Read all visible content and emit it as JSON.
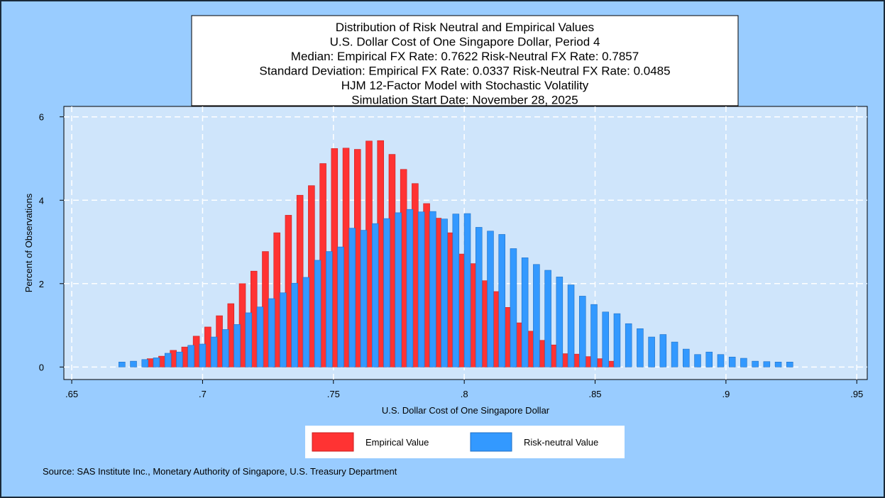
{
  "chart_data": {
    "type": "histogram",
    "title": [
      "Distribution of Risk Neutral and Empirical Values",
      "U.S. Dollar Cost of One Singapore Dollar, Period 4",
      "Median: Empirical FX Rate:  0.7622   Risk-Neutral FX Rate:  0.7857",
      "Standard Deviation: Empirical FX Rate:  0.0337   Risk-Neutral FX Rate:  0.0485",
      "HJM 12-Factor Model with Stochastic Volatility",
      "Simulation Start Date: November 28, 2025"
    ],
    "x_label": "U.S. Dollar Cost of One Singapore Dollar",
    "y_label": "Percent of Observations",
    "source": "Source: SAS Institute Inc., Monetary Authority of Singapore, U.S. Treasury Department",
    "x": [
      0.668,
      0.6724,
      0.6768,
      0.6812,
      0.6856,
      0.69,
      0.6944,
      0.6988,
      0.7032,
      0.7076,
      0.712,
      0.7164,
      0.7208,
      0.7252,
      0.7296,
      0.734,
      0.7384,
      0.7428,
      0.7472,
      0.7516,
      0.756,
      0.7604,
      0.7648,
      0.7692,
      0.7736,
      0.778,
      0.7824,
      0.7868,
      0.7912,
      0.7956,
      0.8,
      0.8044,
      0.8088,
      0.8132,
      0.8176,
      0.822,
      0.8264,
      0.8308,
      0.8352,
      0.8396,
      0.844,
      0.8484,
      0.8528,
      0.8572,
      0.8616,
      0.866,
      0.8704,
      0.8748,
      0.8792,
      0.8836,
      0.888,
      0.8924,
      0.8968,
      0.9012,
      0.9056,
      0.91,
      0.9144,
      0.9188,
      0.9232
    ],
    "series": [
      {
        "name": "Empirical Value",
        "color": "#ff3333",
        "values": [
          null,
          null,
          null,
          0.2,
          0.26,
          0.4,
          0.48,
          0.74,
          0.96,
          1.23,
          1.52,
          2.0,
          2.3,
          2.77,
          3.22,
          3.64,
          4.12,
          4.35,
          4.88,
          5.24,
          5.25,
          5.22,
          5.42,
          5.43,
          5.1,
          4.74,
          4.4,
          3.92,
          3.57,
          3.22,
          2.71,
          2.48,
          2.07,
          1.81,
          1.43,
          1.06,
          0.86,
          0.64,
          0.53,
          0.32,
          0.31,
          0.25,
          0.2,
          0.14,
          null,
          null,
          null,
          null,
          null,
          null,
          null,
          null,
          null,
          null,
          null,
          null,
          null,
          null,
          null
        ]
      },
      {
        "name": "Risk-neutral Value",
        "color": "#3399ff",
        "values": [
          0.12,
          0.14,
          0.18,
          0.22,
          0.33,
          0.36,
          0.52,
          0.55,
          0.72,
          0.9,
          1.02,
          1.3,
          1.44,
          1.64,
          1.78,
          2.01,
          2.15,
          2.56,
          2.77,
          2.88,
          3.33,
          3.28,
          3.44,
          3.56,
          3.7,
          3.78,
          3.72,
          3.73,
          3.55,
          3.67,
          3.68,
          3.35,
          3.26,
          3.18,
          2.84,
          2.62,
          2.46,
          2.32,
          2.16,
          1.97,
          1.7,
          1.5,
          1.32,
          1.28,
          1.04,
          0.92,
          0.72,
          0.78,
          0.6,
          0.43,
          0.3,
          0.36,
          0.3,
          0.24,
          0.21,
          0.14,
          0.13,
          0.12,
          0.12
        ]
      }
    ],
    "xlim": [
      0.647,
      0.954
    ],
    "ylim": [
      -0.3,
      6.25
    ],
    "xticks": [
      {
        "value": 0.65,
        "label": ".65"
      },
      {
        "value": 0.7,
        "label": ".7"
      },
      {
        "value": 0.75,
        "label": ".75"
      },
      {
        "value": 0.8,
        "label": ".8"
      },
      {
        "value": 0.85,
        "label": ".85"
      },
      {
        "value": 0.9,
        "label": ".9"
      },
      {
        "value": 0.95,
        "label": ".95"
      }
    ],
    "yticks": [
      0,
      2,
      4,
      6
    ],
    "grid": true
  }
}
